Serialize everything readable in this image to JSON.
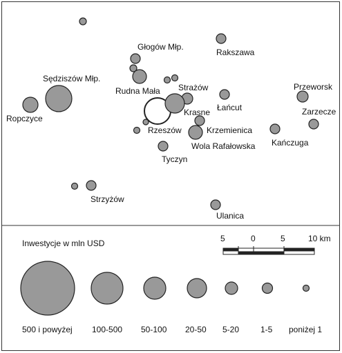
{
  "places": [
    {
      "name": "Głogów Młp."
    },
    {
      "name": "Rakszawa"
    },
    {
      "name": "Sędziszów Młp."
    },
    {
      "name": "Rudna Mała"
    },
    {
      "name": "Strażów"
    },
    {
      "name": "Przeworsk"
    },
    {
      "name": "Łańcut"
    },
    {
      "name": "Ropczyce"
    },
    {
      "name": "Krasne"
    },
    {
      "name": "Zarzecze"
    },
    {
      "name": "Rzeszów"
    },
    {
      "name": "Krzemienica"
    },
    {
      "name": "Kańczuga"
    },
    {
      "name": "Wola Rafałowska"
    },
    {
      "name": "Tyczyn"
    },
    {
      "name": "Strzyżów"
    },
    {
      "name": "Ulanica"
    }
  ],
  "legend": {
    "title": "Inwestycje w mln USD",
    "classes": [
      "500 i powyżej",
      "100-500",
      "50-100",
      "20-50",
      "5-20",
      "1-5",
      "poniżej 1"
    ]
  },
  "scale_bar": {
    "ticks": [
      "5",
      "0",
      "5",
      "10 km"
    ]
  },
  "colors": {
    "symbol_fill": "#999999",
    "outline": "#222222"
  }
}
